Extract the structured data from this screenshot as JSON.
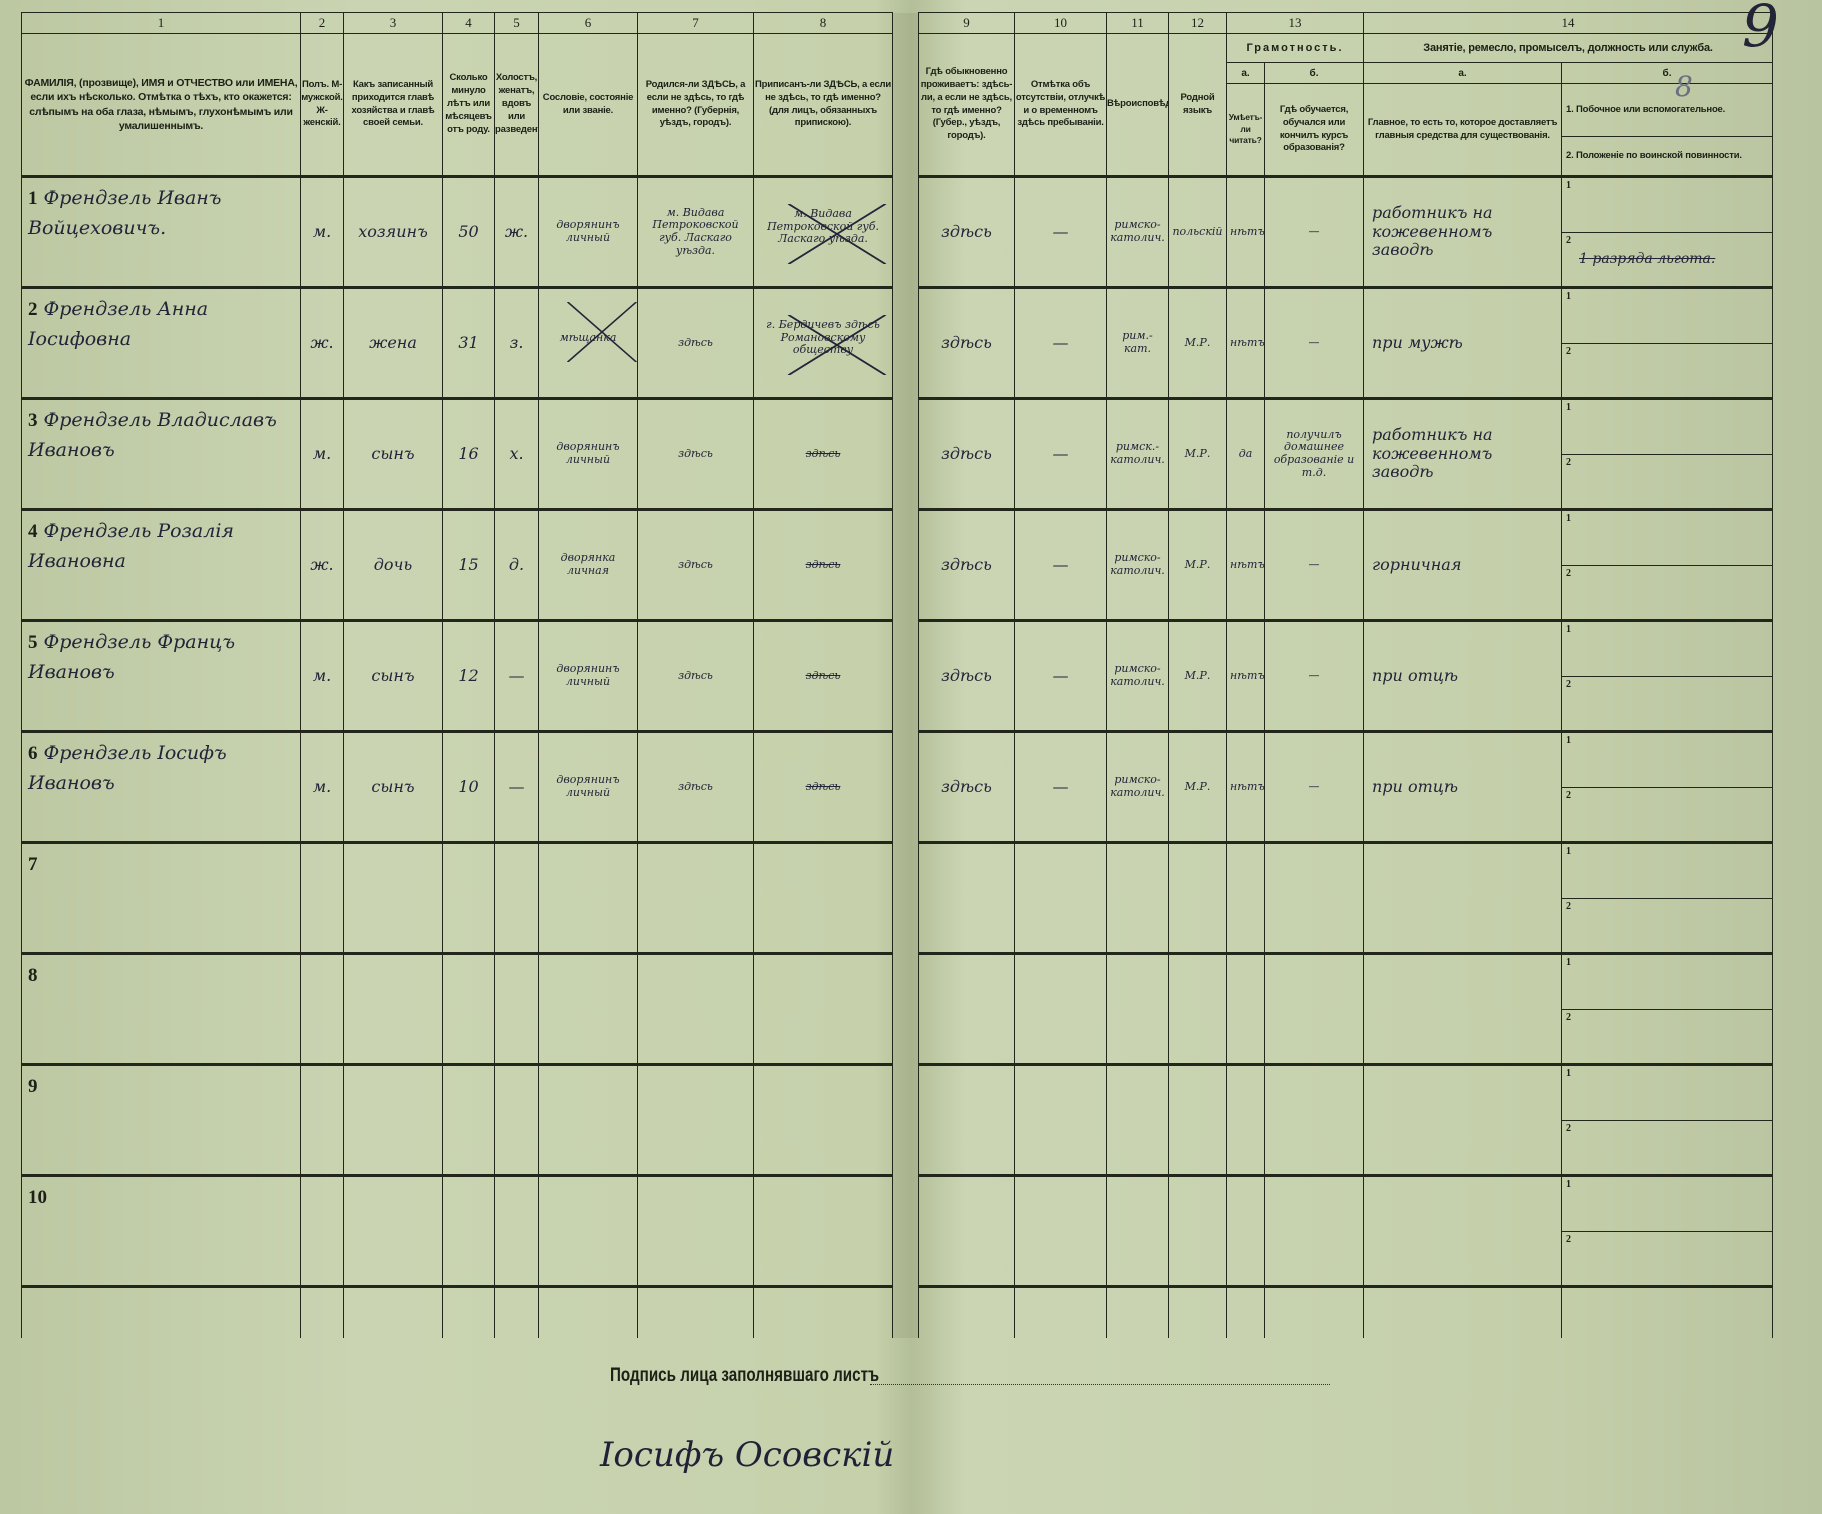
{
  "colors": {
    "paper": "#c6d1ac",
    "ink": "#22261b",
    "handwriting": "#222438"
  },
  "header": {
    "numbers": [
      "1",
      "2",
      "3",
      "4",
      "5",
      "6",
      "7",
      "8",
      "9",
      "10",
      "11",
      "12",
      "13",
      "14"
    ],
    "c1": "ФАМИЛІЯ, (прозвище), ИМЯ и ОТЧЕСТВО или ИМЕНА, если ихъ нѣсколько. Отмѣтка о тѣхъ, кто окажется: слѣпымъ на оба глаза, нѣмымъ, глухонѣмымъ или умалишеннымъ.",
    "c2": "Полъ. М-мужской. Ж-женскій.",
    "c3": "Какъ записанный приходится главѣ хозяйства и главѣ своей семьи.",
    "c4": "Сколько минуло лѣтъ или мѣсяцевъ отъ роду.",
    "c5": "Холостъ, женатъ, вдовъ или разведенъ.",
    "c6": "Сословіе, состояніе или званіе.",
    "c7": "Родился-ли ЗДѢСЬ, а если не здѣсь, то гдѣ именно? (Губернія, уѣздъ, городъ).",
    "c8": "Приписанъ-ли ЗДѢСЬ, а если не здѣсь, то гдѣ именно? (для лицъ, обязанныхъ припискою).",
    "c9": "Гдѣ обыкновенно проживаетъ: здѣсь-ли, а если не здѣсь, то гдѣ именно? (Губер., уѣздъ, городъ).",
    "c10": "Отмѣтка объ отсутствіи, отлучкѣ и о временномъ здѣсь пребываніи.",
    "c11": "Вѣроисповѣданіе.",
    "c12": "Родной языкъ",
    "c13": {
      "title": "Грамотность.",
      "a": "а.",
      "b": "б.",
      "a_text": "Умѣетъ-ли читать?",
      "b_text": "Гдѣ обучается, обучался или кончилъ курсъ образованія?"
    },
    "c14": {
      "title": "Занятіе, ремесло, промыселъ, должность или служба.",
      "a": "а.",
      "b": "б.",
      "a_text": "Главное, то есть то, которое доставляетъ главныя средства для существованія.",
      "b1": "1. Побочное или вспомогательное.",
      "b2": "2. Положеніе по воинской повинности."
    }
  },
  "sub_labels": {
    "one": "1",
    "two": "2"
  },
  "rows": [
    {
      "n": "1",
      "name": "Френдзель Иванъ Войцеховичъ.",
      "sex": "м.",
      "relation": "хозяинъ",
      "age": "50",
      "marital": "ж.",
      "estate": "дворянинъ личный",
      "born": "м. Видава Петроковской губ. Ласкаго уѣзда.",
      "ascribed": "м. Видава Петроковской губ. Ласкаго уѣзда.",
      "ascribed_struck": true,
      "residence": "здѣсь",
      "absence": "—",
      "religion": "римско-католич.",
      "language": "польскій",
      "literate": "нѣтъ",
      "education": "—",
      "occupation": "работникъ на кожевенномъ заводѣ",
      "secondary": "",
      "military": "1 разряда льгота.",
      "estate_struck": false
    },
    {
      "n": "2",
      "name": "Френдзель Анна Іосифовна",
      "sex": "ж.",
      "relation": "жена",
      "age": "31",
      "marital": "з.",
      "estate": "мѣщанка",
      "estate_struck": true,
      "born": "здѣсь",
      "ascribed": "г. Бердичевъ здѣсь Романовскому обществу",
      "ascribed_struck": true,
      "residence": "здѣсь",
      "absence": "—",
      "religion": "рим.-кат.",
      "language": "М.Р.",
      "literate": "нѣтъ",
      "education": "—",
      "occupation": "при мужѣ",
      "secondary": "",
      "military": ""
    },
    {
      "n": "3",
      "name": "Френдзель Владиславъ Ивановъ",
      "sex": "м.",
      "relation": "сынъ",
      "age": "16",
      "marital": "х.",
      "estate": "дворянинъ личный",
      "estate_struck": false,
      "born": "здѣсь",
      "ascribed": "здѣсь",
      "ascribed_struck": true,
      "residence": "здѣсь",
      "absence": "—",
      "religion": "римск.-католич.",
      "language": "М.Р.",
      "literate": "да",
      "education": "получилъ домашнее образованіе и т.д.",
      "occupation": "работникъ на кожевенномъ заводѣ",
      "secondary": "",
      "military": ""
    },
    {
      "n": "4",
      "name": "Френдзель Розалія Ивановна",
      "sex": "ж.",
      "relation": "дочь",
      "age": "15",
      "marital": "д.",
      "estate": "дворянка личная",
      "estate_struck": false,
      "born": "здѣсь",
      "ascribed": "здѣсь",
      "ascribed_struck": true,
      "residence": "здѣсь",
      "absence": "—",
      "religion": "римско-католич.",
      "language": "М.Р.",
      "literate": "нѣтъ",
      "education": "—",
      "occupation": "горничная",
      "secondary": "",
      "military": ""
    },
    {
      "n": "5",
      "name": "Френдзель Францъ Ивановъ",
      "sex": "м.",
      "relation": "сынъ",
      "age": "12",
      "marital": "—",
      "estate": "дворянинъ личный",
      "estate_struck": false,
      "born": "здѣсь",
      "ascribed": "здѣсь",
      "ascribed_struck": true,
      "residence": "здѣсь",
      "absence": "—",
      "religion": "римско-католич.",
      "language": "М.Р.",
      "literate": "нѣтъ",
      "education": "—",
      "occupation": "при отцѣ",
      "secondary": "",
      "military": ""
    },
    {
      "n": "6",
      "name": "Френдзель Іосифъ Ивановъ",
      "sex": "м.",
      "relation": "сынъ",
      "age": "10",
      "marital": "—",
      "estate": "дворянинъ личный",
      "estate_struck": false,
      "born": "здѣсь",
      "ascribed": "здѣсь",
      "ascribed_struck": true,
      "residence": "здѣсь",
      "absence": "—",
      "religion": "римско-католич.",
      "language": "М.Р.",
      "literate": "нѣтъ",
      "education": "—",
      "occupation": "при отцѣ",
      "secondary": "",
      "military": ""
    },
    {
      "n": "7"
    },
    {
      "n": "8"
    },
    {
      "n": "9"
    },
    {
      "n": "10"
    }
  ],
  "footer": {
    "signature_label": "Подпись лица заполнявшаго листъ",
    "signature": "Іосифъ Осовскій"
  },
  "annotations": {
    "page_number": "9",
    "mark": "8"
  }
}
